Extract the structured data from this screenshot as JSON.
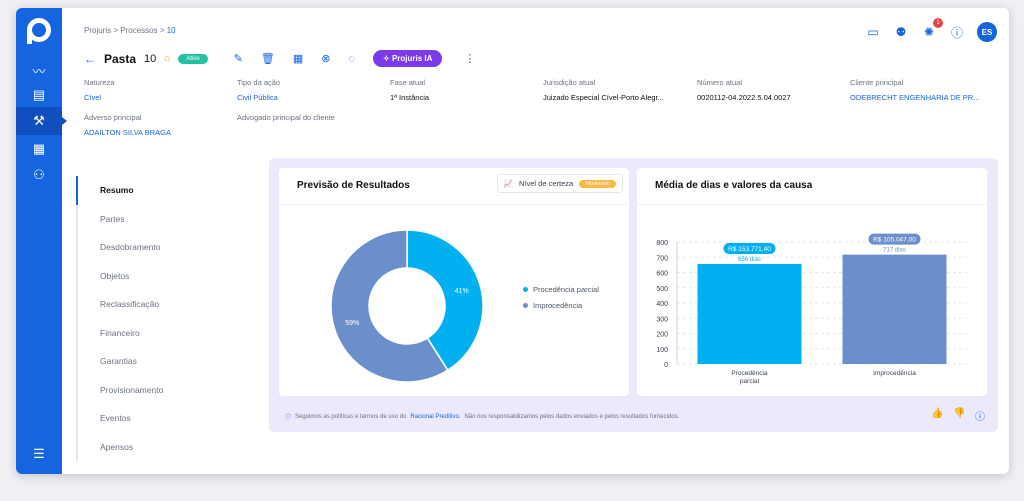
{
  "breadcrumb": {
    "root": "Projuris",
    "section": "Processos",
    "current": "10"
  },
  "header": {
    "title": "Pasta",
    "number": "10",
    "status": "Ativo",
    "ia_button": "Projuris IA",
    "avatar": "ES",
    "notifications": "1"
  },
  "fields": [
    {
      "label": "Natureza",
      "value": "Cível",
      "style": "blue"
    },
    {
      "label": "Tipo da ação",
      "value": "Civil Pública",
      "style": "blue"
    },
    {
      "label": "Fase atual",
      "value": "1ª Instância",
      "style": "dark"
    },
    {
      "label": "Jurisdição atual",
      "value": "Juizado Especial Cível-Porto Alegr...",
      "style": "dark"
    },
    {
      "label": "Número atual",
      "value": "0020112-04.2022.5.04.0027",
      "style": "dark"
    },
    {
      "label": "Cliente principal",
      "value": "ODEBRECHT ENGENHARIA DE PR...",
      "style": "blue"
    },
    {
      "label": "Adverso principal",
      "value": "ADAILTON SILVA BRAGA",
      "style": "blue"
    },
    {
      "label": "Advogado principal do cliente",
      "value": "",
      "style": "dark"
    }
  ],
  "tabs": [
    "Resumo",
    "Partes",
    "Desdobramento",
    "Objetos",
    "Reclassificação",
    "Financeiro",
    "Garantias",
    "Provisionamento",
    "Eventos",
    "Apensos"
  ],
  "prediction": {
    "title": "Previsão de Resultados",
    "certeza_label": "Nível de certeza",
    "certeza_value": "Moderado",
    "legend": [
      "Procedência parcial",
      "Improcedência"
    ]
  },
  "media": {
    "title": "Média de dias e valores da causa"
  },
  "footer": {
    "text_before": "Seguimos as políticas e termos de uso do",
    "link": "Racional Preditivo.",
    "text_after": "Não nos responsabilizamos pelos dados enviados e pelos resultados fornecidos."
  },
  "colors": {
    "primary": "#1565e0",
    "series1": "#00b0f0",
    "series2": "#6b8fcb",
    "accent": "#7c3aed"
  },
  "chart_data": [
    {
      "type": "pie",
      "slices": [
        {
          "label": "Procedência parcial",
          "value": 41,
          "display": "41%"
        },
        {
          "label": "Improcedência",
          "value": 59,
          "display": "59%"
        }
      ]
    },
    {
      "type": "bar",
      "categories": [
        "Procedência parcial",
        "Improcedência"
      ],
      "values": [
        656,
        717
      ],
      "money_labels": [
        "R$ 153.771,40",
        "R$ 105.047,00"
      ],
      "day_labels": [
        "656 dias",
        "717 dias"
      ],
      "ylim": [
        0,
        800
      ],
      "yticks": [
        "800",
        "700",
        "600",
        "500",
        "400",
        "300",
        "200",
        "100",
        "0"
      ],
      "grid": true
    }
  ]
}
